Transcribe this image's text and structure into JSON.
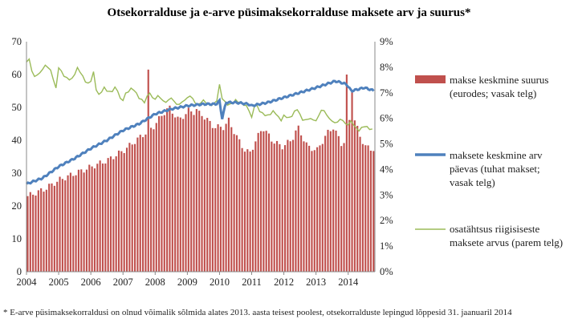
{
  "chart_data": {
    "type": "bar+line",
    "title": "Otsekorralduse ja e-arve püsimaksekorralduse maksete arv ja suurus*",
    "footnote": "* E-arve püsimaksekorraldusi on olnud võimalik sõlmida alates 2013. aasta teisest poolest, otsekorralduste lepingud lõppesid 31. jaanuaril 2014",
    "x_ticks": [
      "2004",
      "2005",
      "2006",
      "2007",
      "2008",
      "2009",
      "2010",
      "2011",
      "2012",
      "2013",
      "2014"
    ],
    "x_range": [
      2004.0,
      2014.83
    ],
    "y_left": {
      "range": [
        0,
        70
      ],
      "ticks": [
        "0",
        "10",
        "20",
        "30",
        "40",
        "50",
        "60",
        "70"
      ]
    },
    "y_right": {
      "range": [
        0,
        9
      ],
      "ticks": [
        "0%",
        "1%",
        "2%",
        "3%",
        "4%",
        "5%",
        "6%",
        "7%",
        "8%",
        "9%"
      ]
    },
    "grid": false,
    "legend_position": "right",
    "colors": {
      "bars": "#c0504d",
      "avg_count": "#4f81bd",
      "share": "#9bbb59"
    },
    "series": [
      {
        "name": "makse keskmine suurus (eurodes; vasak telg)",
        "kind": "bar",
        "axis": "left",
        "knots": [
          [
            2004.0,
            23
          ],
          [
            2004.5,
            25
          ],
          [
            2005.0,
            28
          ],
          [
            2005.5,
            30
          ],
          [
            2006.0,
            32
          ],
          [
            2006.5,
            34
          ],
          [
            2007.0,
            37
          ],
          [
            2007.5,
            41
          ],
          [
            2007.9,
            44
          ],
          [
            2008.2,
            48
          ],
          [
            2008.4,
            50
          ],
          [
            2008.7,
            46
          ],
          [
            2009.0,
            49
          ],
          [
            2009.4,
            48
          ],
          [
            2009.8,
            44
          ],
          [
            2010.1,
            44
          ],
          [
            2010.25,
            46
          ],
          [
            2010.5,
            41
          ],
          [
            2010.75,
            37
          ],
          [
            2010.9,
            36
          ],
          [
            2011.1,
            40
          ],
          [
            2011.3,
            44
          ],
          [
            2011.6,
            40
          ],
          [
            2011.9,
            38
          ],
          [
            2012.2,
            40
          ],
          [
            2012.4,
            44
          ],
          [
            2012.7,
            38
          ],
          [
            2013.0,
            37
          ],
          [
            2013.3,
            42
          ],
          [
            2013.5,
            44
          ],
          [
            2013.8,
            38
          ],
          [
            2013.95,
            45
          ],
          [
            2014.1,
            48
          ],
          [
            2014.3,
            42
          ],
          [
            2014.5,
            38
          ],
          [
            2014.83,
            37
          ]
        ],
        "spikes": [
          [
            2007.78,
            61.5
          ],
          [
            2013.95,
            60
          ],
          [
            2014.05,
            55
          ],
          [
            2009.25,
            49.5
          ]
        ]
      },
      {
        "name": "maksete keskmine arv päevas (tuhat makset; vasak telg)",
        "kind": "line",
        "axis": "left",
        "knots": [
          [
            2004.0,
            26.7
          ],
          [
            2004.5,
            28.5
          ],
          [
            2005.0,
            32
          ],
          [
            2005.5,
            34.5
          ],
          [
            2006.0,
            37.5
          ],
          [
            2006.5,
            40
          ],
          [
            2007.0,
            43
          ],
          [
            2007.5,
            45
          ],
          [
            2008.0,
            48
          ],
          [
            2008.5,
            49.5
          ],
          [
            2009.0,
            50.5
          ],
          [
            2009.5,
            51
          ],
          [
            2009.9,
            51
          ],
          [
            2010.0,
            52
          ],
          [
            2010.08,
            46.5
          ],
          [
            2010.2,
            51.5
          ],
          [
            2010.5,
            51.5
          ],
          [
            2010.9,
            51
          ],
          [
            2011.0,
            50.5
          ],
          [
            2011.5,
            51.5
          ],
          [
            2012.0,
            53
          ],
          [
            2012.5,
            54.5
          ],
          [
            2013.0,
            56
          ],
          [
            2013.3,
            57
          ],
          [
            2013.6,
            58
          ],
          [
            2013.8,
            57.5
          ],
          [
            2013.95,
            57
          ],
          [
            2014.1,
            55
          ],
          [
            2014.3,
            55.5
          ],
          [
            2014.5,
            56
          ],
          [
            2014.83,
            55
          ]
        ]
      },
      {
        "name": "osatähtsus riigisiseste maksete arvus (parem telg)",
        "kind": "line",
        "axis": "right",
        "knots": [
          [
            2004.0,
            8.2
          ],
          [
            2004.1,
            8.35
          ],
          [
            2004.2,
            7.6
          ],
          [
            2004.4,
            7.75
          ],
          [
            2004.6,
            8.1
          ],
          [
            2004.8,
            7.8
          ],
          [
            2004.9,
            7.0
          ],
          [
            2005.0,
            8.0
          ],
          [
            2005.2,
            7.6
          ],
          [
            2005.4,
            7.5
          ],
          [
            2005.6,
            8.0
          ],
          [
            2005.8,
            7.5
          ],
          [
            2005.95,
            7.3
          ],
          [
            2006.1,
            7.85
          ],
          [
            2006.2,
            6.8
          ],
          [
            2006.4,
            7.2
          ],
          [
            2006.6,
            7.0
          ],
          [
            2006.8,
            7.25
          ],
          [
            2006.95,
            6.6
          ],
          [
            2007.1,
            7.0
          ],
          [
            2007.3,
            7.2
          ],
          [
            2007.5,
            6.8
          ],
          [
            2007.7,
            6.6
          ],
          [
            2007.8,
            7.1
          ],
          [
            2007.95,
            6.7
          ],
          [
            2008.1,
            6.9
          ],
          [
            2008.3,
            6.6
          ],
          [
            2008.5,
            6.8
          ],
          [
            2008.7,
            6.5
          ],
          [
            2008.9,
            6.7
          ],
          [
            2009.1,
            6.9
          ],
          [
            2009.3,
            6.5
          ],
          [
            2009.5,
            6.7
          ],
          [
            2009.7,
            6.5
          ],
          [
            2009.9,
            6.6
          ],
          [
            2010.0,
            7.3
          ],
          [
            2010.1,
            6.7
          ],
          [
            2010.3,
            6.5
          ],
          [
            2010.5,
            6.7
          ],
          [
            2010.7,
            6.6
          ],
          [
            2010.9,
            6.4
          ],
          [
            2011.0,
            6.0
          ],
          [
            2011.1,
            6.6
          ],
          [
            2011.3,
            6.2
          ],
          [
            2011.5,
            6.1
          ],
          [
            2011.7,
            6.3
          ],
          [
            2011.9,
            5.9
          ],
          [
            2012.0,
            6.1
          ],
          [
            2012.2,
            6.0
          ],
          [
            2012.4,
            6.4
          ],
          [
            2012.6,
            5.9
          ],
          [
            2012.8,
            6.0
          ],
          [
            2013.0,
            5.9
          ],
          [
            2013.2,
            6.4
          ],
          [
            2013.4,
            6.0
          ],
          [
            2013.6,
            5.8
          ],
          [
            2013.8,
            6.0
          ],
          [
            2013.95,
            5.7
          ],
          [
            2014.1,
            5.9
          ],
          [
            2014.3,
            5.5
          ],
          [
            2014.5,
            5.7
          ],
          [
            2014.83,
            5.5
          ]
        ]
      }
    ]
  }
}
